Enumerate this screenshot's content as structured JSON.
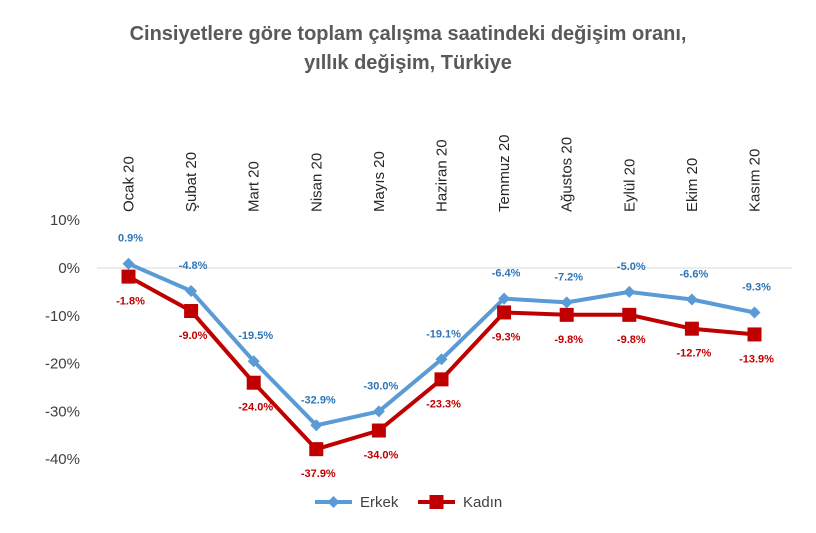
{
  "chart_data": {
    "type": "line",
    "title": [
      "Cinsiyetlere göre toplam çalışma saatindeki değişim oranı,",
      "yıllık değişim, Türkiye"
    ],
    "categories": [
      "Ocak 20",
      "Şubat 20",
      "Mart 20",
      "Nisan 20",
      "Mayıs 20",
      "Haziran 20",
      "Temmuz 20",
      "Ağustos 20",
      "Eylül 20",
      "Ekim 20",
      "Kasım 20"
    ],
    "series": [
      {
        "name": "Erkek",
        "values": [
          0.9,
          -4.8,
          -19.5,
          -32.9,
          -30.0,
          -19.1,
          -6.4,
          -7.2,
          -5.0,
          -6.6,
          -9.3
        ],
        "labels": [
          "0.9%",
          "-4.8%",
          "-19.5%",
          "-32.9%",
          "-30.0%",
          "-19.1%",
          "-6.4%",
          "-7.2%",
          "-5.0%",
          "-6.6%",
          "-9.3%"
        ],
        "color": "#5b9bd5",
        "label_color": "#2e75b6",
        "marker": "diamond"
      },
      {
        "name": "Kadın",
        "values": [
          -1.8,
          -9.0,
          -24.0,
          -37.9,
          -34.0,
          -23.3,
          -9.3,
          -9.8,
          -9.8,
          -12.7,
          -13.9
        ],
        "labels": [
          "-1.8%",
          "-9.0%",
          "-24.0%",
          "-37.9%",
          "-34.0%",
          "-23.3%",
          "-9.3%",
          "-9.8%",
          "-9.8%",
          "-12.7%",
          "-13.9%"
        ],
        "color": "#c00000",
        "label_color": "#c00000",
        "marker": "square"
      }
    ],
    "ylim": [
      -40,
      10
    ],
    "yticks": [
      10,
      0,
      -10,
      -20,
      -30,
      -40
    ],
    "ytick_labels": [
      "10%",
      "0%",
      "-10%",
      "-20%",
      "-30%",
      "-40%"
    ],
    "legend_position": "bottom",
    "grid": false
  }
}
